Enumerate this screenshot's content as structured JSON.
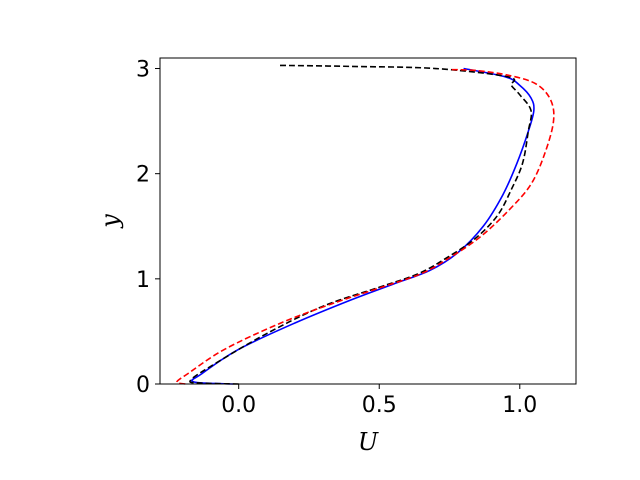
{
  "chart_data": {
    "type": "line",
    "title": "",
    "xlabel": "U",
    "ylabel": "y",
    "xlim": [
      -0.28,
      1.2
    ],
    "ylim": [
      0,
      3.1
    ],
    "xticks": [
      0.0,
      0.5,
      1.0
    ],
    "xtick_labels": [
      "0.0",
      "0.5",
      "1.0"
    ],
    "yticks": [
      0,
      1,
      2,
      3
    ],
    "ytick_labels": [
      "0",
      "1",
      "2",
      "3"
    ],
    "grid": false,
    "legend": "none",
    "series": [
      {
        "color": "#0000ff",
        "dash": "solid",
        "points": [
          [
            -0.02,
            0.0
          ],
          [
            -0.16,
            0.02
          ],
          [
            -0.13,
            0.1
          ],
          [
            0.0,
            0.33
          ],
          [
            0.2,
            0.58
          ],
          [
            0.4,
            0.8
          ],
          [
            0.55,
            0.95
          ],
          [
            0.68,
            1.08
          ],
          [
            0.78,
            1.25
          ],
          [
            0.87,
            1.5
          ],
          [
            0.94,
            1.8
          ],
          [
            0.99,
            2.1
          ],
          [
            1.03,
            2.4
          ],
          [
            1.05,
            2.6
          ],
          [
            1.04,
            2.72
          ],
          [
            1.0,
            2.84
          ],
          [
            0.95,
            2.92
          ],
          [
            0.8,
            3.0
          ]
        ]
      },
      {
        "color": "#000000",
        "dash": "dashed",
        "points": [
          [
            0.0,
            0.0
          ],
          [
            -0.14,
            0.01
          ],
          [
            -0.17,
            0.04
          ],
          [
            -0.08,
            0.2
          ],
          [
            0.1,
            0.48
          ],
          [
            0.3,
            0.74
          ],
          [
            0.5,
            0.92
          ],
          [
            0.64,
            1.05
          ],
          [
            0.74,
            1.2
          ],
          [
            0.84,
            1.38
          ],
          [
            0.92,
            1.6
          ],
          [
            0.97,
            1.85
          ],
          [
            1.01,
            2.1
          ],
          [
            1.03,
            2.4
          ],
          [
            1.04,
            2.6
          ],
          [
            1.0,
            2.75
          ],
          [
            0.97,
            2.84
          ],
          [
            0.96,
            2.92
          ],
          [
            0.7,
            3.0
          ],
          [
            0.4,
            3.02
          ],
          [
            0.14,
            3.03
          ]
        ]
      },
      {
        "color": "#ff0000",
        "dash": "dashed",
        "points": [
          [
            -0.19,
            0.0
          ],
          [
            -0.22,
            0.02
          ],
          [
            -0.18,
            0.1
          ],
          [
            -0.05,
            0.33
          ],
          [
            0.15,
            0.58
          ],
          [
            0.35,
            0.78
          ],
          [
            0.52,
            0.93
          ],
          [
            0.65,
            1.05
          ],
          [
            0.75,
            1.2
          ],
          [
            0.86,
            1.4
          ],
          [
            0.96,
            1.65
          ],
          [
            1.04,
            1.9
          ],
          [
            1.09,
            2.2
          ],
          [
            1.12,
            2.5
          ],
          [
            1.11,
            2.7
          ],
          [
            1.06,
            2.85
          ],
          [
            0.97,
            2.93
          ],
          [
            0.85,
            2.98
          ],
          [
            0.75,
            2.99
          ]
        ]
      }
    ]
  }
}
